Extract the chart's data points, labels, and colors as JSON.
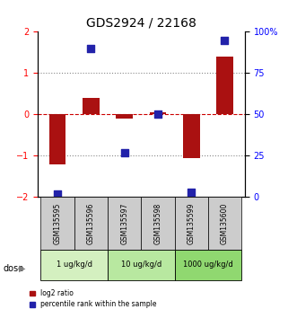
{
  "title": "GDS2924 / 22168",
  "samples": [
    "GSM135595",
    "GSM135596",
    "GSM135597",
    "GSM135598",
    "GSM135599",
    "GSM135600"
  ],
  "log2_ratio": [
    -1.2,
    0.4,
    -0.1,
    0.05,
    -1.05,
    1.4
  ],
  "percentile_rank": [
    2,
    90,
    27,
    50,
    3,
    95
  ],
  "dose_groups": [
    {
      "label": "1 ug/kg/d",
      "samples": [
        0,
        1
      ],
      "color": "#d4f0c0"
    },
    {
      "label": "10 ug/kg/d",
      "samples": [
        2,
        3
      ],
      "color": "#b8e8a0"
    },
    {
      "label": "1000 ug/kg/d",
      "samples": [
        4,
        5
      ],
      "color": "#90d870"
    }
  ],
  "ylim_left": [
    -2,
    2
  ],
  "ylim_right": [
    0,
    100
  ],
  "yticks_left": [
    -2,
    -1,
    0,
    1,
    2
  ],
  "yticks_right": [
    0,
    25,
    50,
    75,
    100
  ],
  "ytick_labels_right": [
    "0",
    "25",
    "50",
    "75",
    "100%"
  ],
  "bar_color": "#aa1111",
  "dot_color": "#2222aa",
  "hline_color": "#cc0000",
  "hline_style": "--",
  "dotted_color": "#888888",
  "sample_box_color": "#cccccc",
  "legend_bar_label": "log2 ratio",
  "legend_dot_label": "percentile rank within the sample",
  "dose_label": "dose",
  "bar_width": 0.5
}
